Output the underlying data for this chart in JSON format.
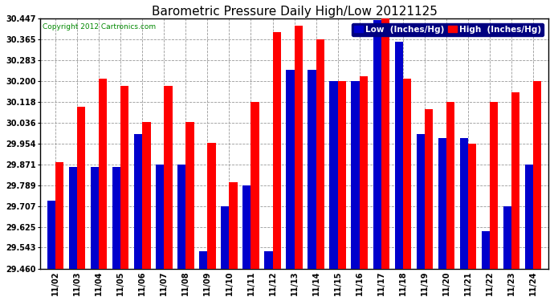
{
  "title": "Barometric Pressure Daily High/Low 20121125",
  "copyright": "Copyright 2012 Cartronics.com",
  "legend_low": "Low  (Inches/Hg)",
  "legend_high": "High  (Inches/Hg)",
  "ylabel_values": [
    29.46,
    29.543,
    29.625,
    29.707,
    29.789,
    29.871,
    29.954,
    30.036,
    30.118,
    30.2,
    30.283,
    30.365,
    30.447
  ],
  "ylim": [
    29.46,
    30.447
  ],
  "dates": [
    "11/02",
    "11/03",
    "11/04",
    "11/05",
    "11/06",
    "11/07",
    "11/08",
    "11/09",
    "11/10",
    "11/11",
    "11/12",
    "11/13",
    "11/14",
    "11/15",
    "11/16",
    "11/17",
    "11/18",
    "11/19",
    "11/20",
    "11/21",
    "11/22",
    "11/23",
    "11/24"
  ],
  "low_values": [
    29.727,
    29.862,
    29.862,
    29.862,
    29.99,
    29.871,
    29.871,
    29.53,
    29.707,
    29.789,
    29.53,
    30.245,
    30.245,
    30.2,
    30.2,
    30.44,
    30.355,
    29.99,
    29.975,
    29.975,
    29.607,
    29.707,
    29.871
  ],
  "high_values": [
    29.88,
    30.1,
    30.21,
    30.18,
    30.04,
    30.18,
    30.04,
    29.955,
    29.8,
    30.118,
    30.395,
    30.42,
    30.365,
    30.2,
    30.22,
    30.447,
    30.21,
    30.09,
    30.118,
    29.954,
    30.118,
    30.155,
    30.2
  ],
  "bar_width": 0.38,
  "low_color": "#0000cc",
  "high_color": "#ff0000",
  "background_color": "#ffffff",
  "plot_bg_color": "#ffffff",
  "grid_color": "#999999",
  "title_fontsize": 11,
  "tick_fontsize": 7,
  "legend_fontsize": 7.5,
  "fig_width": 6.9,
  "fig_height": 3.75,
  "dpi": 100
}
